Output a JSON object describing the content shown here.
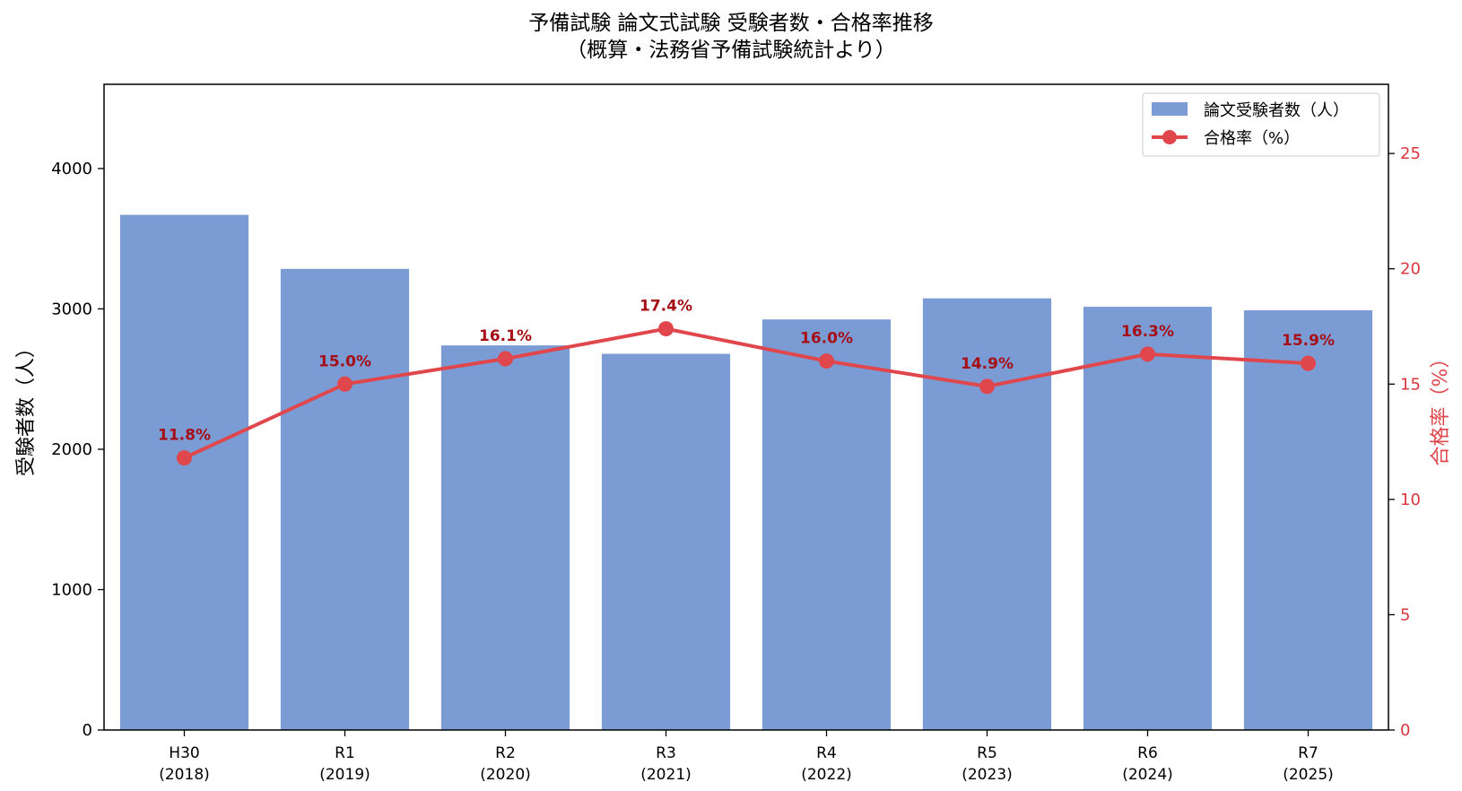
{
  "chart_data": {
    "type": "bar",
    "title": "予備試験 論文式試験 受験者数・合格率推移",
    "subtitle": "（概算・法務省予備試験統計より）",
    "categories": [
      {
        "label": "H30",
        "year": "(2018)"
      },
      {
        "label": "R1",
        "year": "(2019)"
      },
      {
        "label": "R2",
        "year": "(2020)"
      },
      {
        "label": "R3",
        "year": "(2021)"
      },
      {
        "label": "R4",
        "year": "(2022)"
      },
      {
        "label": "R5",
        "year": "(2023)"
      },
      {
        "label": "R6",
        "year": "(2024)"
      },
      {
        "label": "R7",
        "year": "(2025)"
      }
    ],
    "series": [
      {
        "name": "論文受験者数（人）",
        "type": "bar",
        "axis": "left",
        "color": "#7b9bd4",
        "values": [
          3670,
          3285,
          2740,
          2680,
          2925,
          3075,
          3015,
          2990
        ]
      },
      {
        "name": "合格率（%）",
        "type": "line",
        "axis": "right",
        "color": "#e0474c",
        "values": [
          11.8,
          15.0,
          16.1,
          17.4,
          16.0,
          14.9,
          16.3,
          15.9
        ],
        "labels": [
          "11.8%",
          "15.0%",
          "16.1%",
          "17.4%",
          "16.0%",
          "14.9%",
          "16.3%",
          "15.9%"
        ]
      }
    ],
    "ylabel": "受験者数（人）",
    "y2label": "合格率（%）",
    "ylim": [
      0,
      4600
    ],
    "y2lim": [
      0,
      28
    ],
    "yticks": [
      0,
      1000,
      2000,
      3000,
      4000
    ],
    "y2ticks": [
      0,
      5,
      10,
      15,
      20,
      25
    ],
    "grid": false,
    "legend_position": "top-right",
    "label_color": "#a50f15",
    "right_axis_color": "#d9363e"
  }
}
